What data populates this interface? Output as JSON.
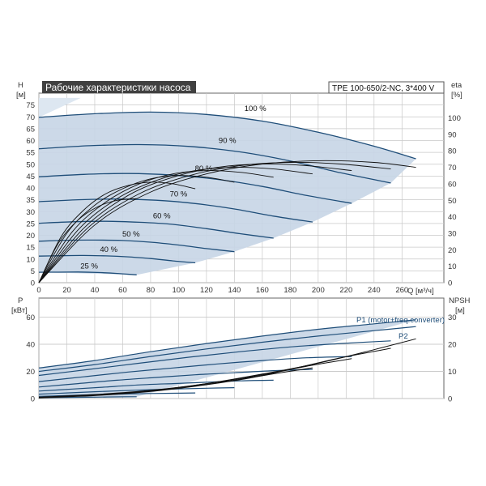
{
  "header": {
    "title": "Рабочие характеристики насоса",
    "model": "TPE 100-650/2-NC, 3*400 V"
  },
  "colors": {
    "title_bg": "#404040",
    "curve_blue": "#1f4e79",
    "region_fill": "#c6d5e6",
    "eta_black": "#111111"
  },
  "chart_data": [
    {
      "type": "line",
      "name": "head-chart",
      "ylabel": "H",
      "yunit": "[м]",
      "y2label": "eta",
      "y2unit": "[%]",
      "xlabel": "Q [м³/ч]",
      "xlim": [
        0,
        290
      ],
      "ylim": [
        0,
        80
      ],
      "y2lim": [
        0,
        115
      ],
      "x_ticks": [
        0,
        20,
        40,
        60,
        80,
        100,
        120,
        140,
        160,
        180,
        200,
        220,
        240,
        260
      ],
      "y_ticks": [
        0,
        5,
        10,
        15,
        20,
        25,
        30,
        35,
        40,
        45,
        50,
        55,
        60,
        65,
        70,
        75
      ],
      "y2_ticks": [
        0,
        10,
        20,
        30,
        40,
        50,
        60,
        70,
        80,
        90,
        100
      ],
      "grid": true,
      "series": [
        {
          "name": "100 %",
          "x": [
            0,
            40,
            80,
            120,
            160,
            200,
            240,
            270
          ],
          "y": [
            69.8,
            71.3,
            72.0,
            71.0,
            68.2,
            63.5,
            57.6,
            52.3
          ]
        },
        {
          "name": "90 %",
          "x": [
            0,
            36,
            72,
            108,
            144,
            180,
            216,
            252
          ],
          "y": [
            56.5,
            57.8,
            58.3,
            57.5,
            55.2,
            51.4,
            46.4,
            42.1
          ]
        },
        {
          "name": "80 %",
          "x": [
            0,
            32,
            64,
            96,
            128,
            160,
            192,
            224
          ],
          "y": [
            44.7,
            45.7,
            46.1,
            45.4,
            43.6,
            40.6,
            36.8,
            33.5
          ]
        },
        {
          "name": "70 %",
          "x": [
            0,
            28,
            56,
            84,
            112,
            140,
            168,
            196
          ],
          "y": [
            34.2,
            35.0,
            35.3,
            34.8,
            33.4,
            31.1,
            28.1,
            25.6
          ]
        },
        {
          "name": "60 %",
          "x": [
            0,
            24,
            48,
            72,
            96,
            120,
            144,
            168
          ],
          "y": [
            25.1,
            25.7,
            25.9,
            25.5,
            24.6,
            22.8,
            20.7,
            18.8
          ]
        },
        {
          "name": "50 %",
          "x": [
            0,
            20,
            40,
            60,
            80,
            100,
            120,
            140
          ],
          "y": [
            17.5,
            17.9,
            18.0,
            17.8,
            17.1,
            15.9,
            14.4,
            13.1
          ]
        },
        {
          "name": "40 %",
          "x": [
            0,
            16,
            32,
            48,
            64,
            80,
            96,
            112
          ],
          "y": [
            11.2,
            11.4,
            11.5,
            11.3,
            10.9,
            10.2,
            9.2,
            8.4
          ]
        },
        {
          "name": "25 %",
          "x": [
            0,
            14,
            28,
            42,
            56,
            70
          ],
          "y": [
            4.4,
            4.45,
            4.5,
            4.3,
            3.9,
            3.3
          ]
        }
      ],
      "eta_series": [
        {
          "x": [
            0,
            40,
            80,
            120,
            160,
            200,
            240,
            270
          ],
          "y": [
            0,
            35,
            55,
            66,
            72,
            74,
            73,
            70
          ]
        },
        {
          "x": [
            0,
            36,
            72,
            108,
            144,
            180,
            216,
            252
          ],
          "y": [
            0,
            34,
            54,
            65,
            71,
            73,
            72,
            69
          ]
        },
        {
          "x": [
            0,
            32,
            64,
            96,
            128,
            160,
            192,
            224
          ],
          "y": [
            0,
            33,
            53,
            64,
            70,
            72,
            71,
            68
          ]
        },
        {
          "x": [
            0,
            28,
            56,
            84,
            112,
            140,
            168,
            196
          ],
          "y": [
            0,
            32,
            51,
            62,
            68,
            70,
            69,
            66
          ]
        },
        {
          "x": [
            0,
            24,
            48,
            72,
            96,
            120,
            144,
            168
          ],
          "y": [
            0,
            31,
            49,
            60,
            66,
            68,
            67,
            64
          ]
        },
        {
          "x": [
            0,
            20,
            40,
            60,
            80,
            100,
            120,
            140
          ],
          "y": [
            0,
            30,
            47,
            57,
            63,
            65,
            64,
            61
          ]
        },
        {
          "x": [
            0,
            16,
            32,
            48,
            64,
            80,
            96,
            112
          ],
          "y": [
            0,
            28,
            44,
            54,
            59,
            61,
            60,
            57
          ]
        },
        {
          "x": [
            0,
            14,
            28,
            42,
            56,
            70
          ],
          "y": [
            0,
            24,
            38,
            46,
            50,
            51
          ]
        }
      ]
    },
    {
      "type": "line",
      "name": "power-chart",
      "ylabel": "P",
      "yunit": "[кВт]",
      "y2label": "NPSH",
      "y2unit": "[м]",
      "xlim": [
        0,
        290
      ],
      "ylim": [
        0,
        74
      ],
      "y2lim": [
        0,
        37
      ],
      "y_ticks": [
        0,
        20,
        40,
        60
      ],
      "y2_ticks": [
        0,
        10,
        20,
        30
      ],
      "grid": true,
      "series": [
        {
          "name": "P1 (motor+freq.converter)",
          "x": [
            0,
            40,
            80,
            120,
            160,
            200,
            240,
            270
          ],
          "y": [
            22.5,
            28.0,
            34.5,
            40.5,
            46.0,
            51.0,
            55.0,
            58.0
          ]
        },
        {
          "name": "P2",
          "x": [
            0,
            40,
            80,
            120,
            160,
            200,
            240,
            270
          ],
          "y": [
            20.0,
            25.0,
            31.0,
            36.5,
            41.5,
            46.0,
            50.0,
            53.0
          ]
        },
        {
          "name": "",
          "x": [
            0,
            36,
            72,
            108,
            144,
            180,
            216,
            252
          ],
          "y": [
            17.0,
            21.5,
            26.0,
            30.5,
            34.5,
            38.0,
            40.5,
            42.5
          ]
        },
        {
          "name": "",
          "x": [
            0,
            32,
            64,
            96,
            128,
            160,
            192,
            224
          ],
          "y": [
            12.5,
            16.0,
            19.5,
            22.5,
            25.5,
            28.0,
            30.0,
            31.0
          ]
        },
        {
          "name": "",
          "x": [
            0,
            28,
            56,
            84,
            112,
            140,
            168,
            196
          ],
          "y": [
            8.5,
            11.0,
            13.5,
            15.5,
            17.5,
            19.0,
            20.5,
            21.5
          ]
        },
        {
          "name": "",
          "x": [
            0,
            24,
            48,
            72,
            96,
            120,
            144,
            168
          ],
          "y": [
            5.5,
            7.0,
            8.5,
            10.0,
            11.0,
            12.0,
            13.0,
            13.5
          ]
        },
        {
          "name": "",
          "x": [
            0,
            20,
            40,
            60,
            80,
            100,
            120,
            140
          ],
          "y": [
            3.2,
            4.1,
            5.0,
            5.8,
            6.5,
            7.1,
            7.6,
            8.0
          ]
        },
        {
          "name": "",
          "x": [
            0,
            16,
            32,
            48,
            64,
            80,
            96,
            112
          ],
          "y": [
            1.6,
            2.1,
            2.6,
            3.0,
            3.4,
            3.7,
            3.9,
            4.1
          ]
        },
        {
          "name": "",
          "x": [
            0,
            14,
            28,
            42,
            56,
            70
          ],
          "y": [
            0.5,
            0.7,
            0.9,
            1.0,
            1.2,
            1.3
          ]
        }
      ],
      "npsh_series": [
        {
          "x": [
            0,
            40,
            80,
            120,
            160,
            200,
            240,
            270
          ],
          "y": [
            0.5,
            1.5,
            3.0,
            5.5,
            9.0,
            13.0,
            18.0,
            22.0
          ]
        },
        {
          "x": [
            0,
            36,
            72,
            108,
            144,
            180,
            216,
            252
          ],
          "y": [
            0.4,
            1.2,
            2.5,
            4.6,
            7.4,
            10.8,
            15.0,
            18.5
          ]
        },
        {
          "x": [
            0,
            32,
            64,
            96,
            128,
            160,
            192,
            224
          ],
          "y": [
            0.3,
            1.0,
            2.0,
            3.6,
            5.8,
            8.6,
            11.9,
            14.7
          ]
        },
        {
          "x": [
            0,
            28,
            56,
            84,
            112,
            140,
            168,
            196
          ],
          "y": [
            0.25,
            0.8,
            1.6,
            2.8,
            4.5,
            6.6,
            9.1,
            11.3
          ]
        }
      ],
      "legend": [
        "P1 (motor+freq.converter)",
        "P2"
      ]
    }
  ],
  "speed_labels": [
    "100 %",
    "90 %",
    "80 %",
    "70 %",
    "60 %",
    "50 %",
    "40 %",
    "25 %"
  ],
  "speed_label_positions": [
    {
      "x": 155,
      "y": 72.5
    },
    {
      "x": 135,
      "y": 59
    },
    {
      "x": 118,
      "y": 47.2
    },
    {
      "x": 100,
      "y": 36.4
    },
    {
      "x": 88,
      "y": 27.2
    },
    {
      "x": 66,
      "y": 19.5
    },
    {
      "x": 50,
      "y": 13.0
    },
    {
      "x": 36,
      "y": 6.0
    }
  ]
}
